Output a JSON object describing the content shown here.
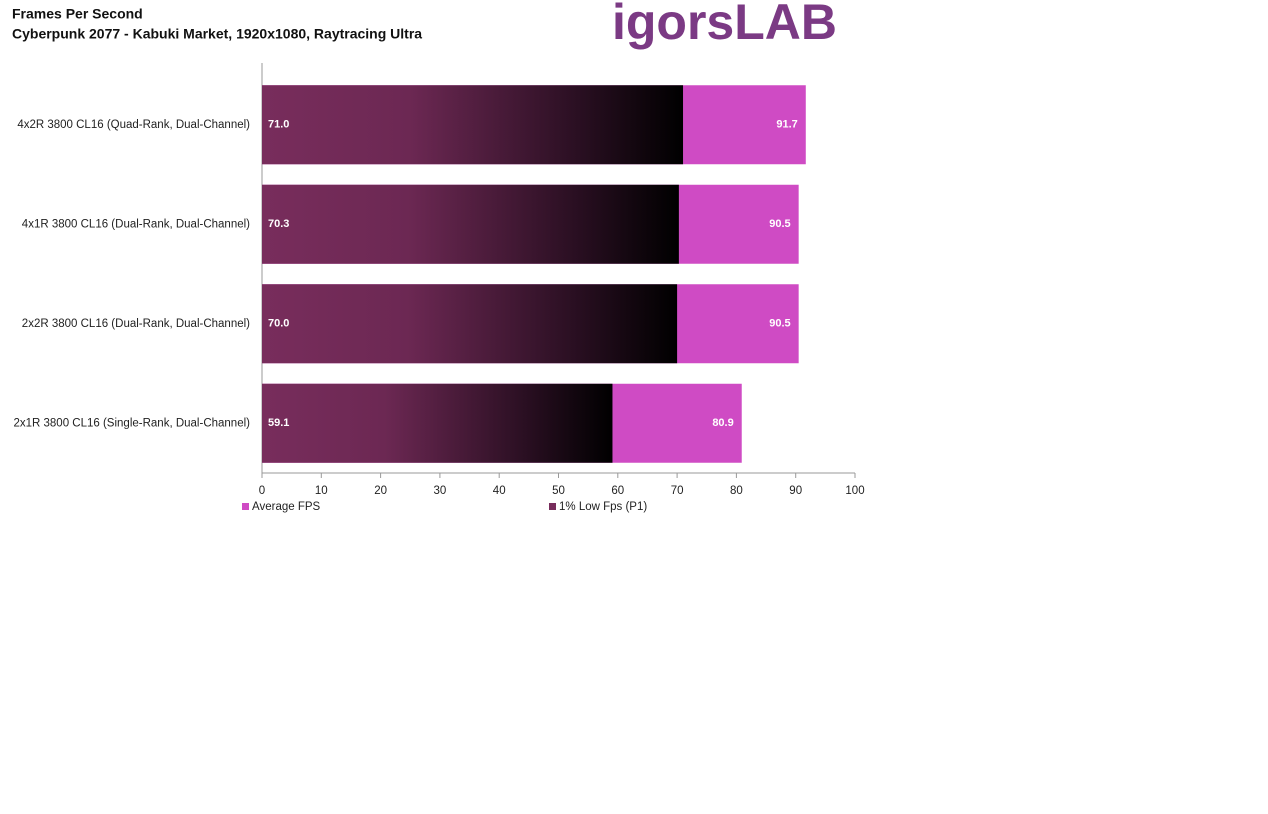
{
  "chart_data": {
    "type": "hbar_overlap",
    "title": "Frames Per Second",
    "subtitle": "Cyberpunk 2077 - Kabuki Market, 1920x1080, Raytracing Ultra",
    "logo": "igorsLAB",
    "categories": [
      "4x2R 3800 CL16 (Quad-Rank, Dual-Channel)",
      "4x1R 3800 CL16 (Dual-Rank, Dual-Channel)",
      "2x2R 3800 CL16 (Dual-Rank, Dual-Channel)",
      "2x1R 3800 CL16 (Single-Rank, Dual-Channel)"
    ],
    "series": [
      {
        "name": "Average FPS",
        "color": "#cf4bc4",
        "values": [
          91.7,
          90.5,
          90.5,
          80.9
        ],
        "value_labels": [
          "91.7",
          "90.5",
          "90.5",
          "80.9"
        ]
      },
      {
        "name": "1% Low Fps (P1)",
        "color": "#782d5c",
        "values": [
          71.0,
          70.3,
          70.0,
          59.1
        ],
        "value_labels": [
          "71.0",
          "70.3",
          "70.0",
          "59.1"
        ]
      }
    ],
    "xlim": [
      0,
      100
    ],
    "xticks": [
      0,
      10,
      20,
      30,
      40,
      50,
      60,
      70,
      80,
      90,
      100
    ]
  }
}
